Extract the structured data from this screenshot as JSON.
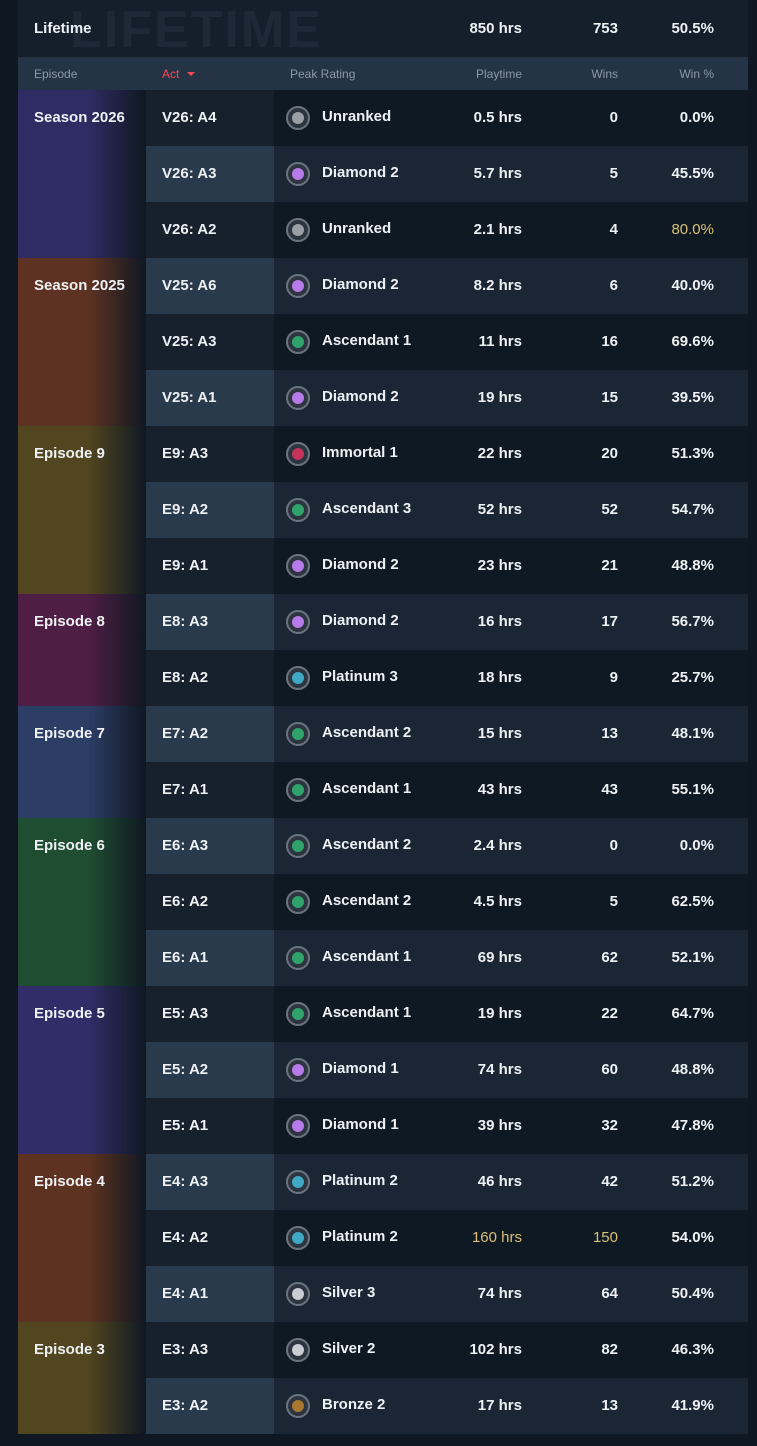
{
  "lifetime": {
    "watermark": "LIFETIME",
    "label": "Lifetime",
    "playtime": "850 hrs",
    "wins": "753",
    "win_pct": "50.5%"
  },
  "headers": [
    "Episode",
    "Act",
    "Peak Rating",
    "Playtime",
    "Wins",
    "Win %"
  ],
  "episodes": [
    {
      "name": "Season 2026",
      "color": "#2f2b63",
      "acts": [
        {
          "act": "V26: A4",
          "rank": "Unranked",
          "tier_color": "#9aa0a6",
          "playtime": "0.5 hrs",
          "wins": "0",
          "win_pct": "0.0%"
        },
        {
          "act": "V26: A3",
          "rank": "Diamond 2",
          "tier_color": "#b77be8",
          "playtime": "5.7 hrs",
          "wins": "5",
          "win_pct": "45.5%"
        },
        {
          "act": "V26: A2",
          "rank": "Unranked",
          "tier_color": "#9aa0a6",
          "playtime": "2.1 hrs",
          "wins": "4",
          "win_pct": "80.0%",
          "highlight": [
            "win_pct"
          ]
        }
      ]
    },
    {
      "name": "Season 2025",
      "color": "#5e3222",
      "acts": [
        {
          "act": "V25: A6",
          "rank": "Diamond 2",
          "tier_color": "#b77be8",
          "playtime": "8.2 hrs",
          "wins": "6",
          "win_pct": "40.0%"
        },
        {
          "act": "V25: A3",
          "rank": "Ascendant 1",
          "tier_color": "#2fa36b",
          "playtime": "11 hrs",
          "wins": "16",
          "win_pct": "69.6%"
        },
        {
          "act": "V25: A1",
          "rank": "Diamond 2",
          "tier_color": "#b77be8",
          "playtime": "19 hrs",
          "wins": "15",
          "win_pct": "39.5%"
        }
      ]
    },
    {
      "name": "Episode 9",
      "color": "#524620",
      "acts": [
        {
          "act": "E9: A3",
          "rank": "Immortal 1",
          "tier_color": "#c4345a",
          "playtime": "22 hrs",
          "wins": "20",
          "win_pct": "51.3%"
        },
        {
          "act": "E9: A2",
          "rank": "Ascendant 3",
          "tier_color": "#2fa36b",
          "playtime": "52 hrs",
          "wins": "52",
          "win_pct": "54.7%"
        },
        {
          "act": "E9: A1",
          "rank": "Diamond 2",
          "tier_color": "#b77be8",
          "playtime": "23 hrs",
          "wins": "21",
          "win_pct": "48.8%"
        }
      ]
    },
    {
      "name": "Episode 8",
      "color": "#4e1e44",
      "acts": [
        {
          "act": "E8: A3",
          "rank": "Diamond 2",
          "tier_color": "#b77be8",
          "playtime": "16 hrs",
          "wins": "17",
          "win_pct": "56.7%"
        },
        {
          "act": "E8: A2",
          "rank": "Platinum 3",
          "tier_color": "#3fa9c4",
          "playtime": "18 hrs",
          "wins": "9",
          "win_pct": "25.7%"
        }
      ]
    },
    {
      "name": "Episode 7",
      "color": "#2c3d66",
      "acts": [
        {
          "act": "E7: A2",
          "rank": "Ascendant 2",
          "tier_color": "#2fa36b",
          "playtime": "15 hrs",
          "wins": "13",
          "win_pct": "48.1%"
        },
        {
          "act": "E7: A1",
          "rank": "Ascendant 1",
          "tier_color": "#2fa36b",
          "playtime": "43 hrs",
          "wins": "43",
          "win_pct": "55.1%"
        }
      ]
    },
    {
      "name": "Episode 6",
      "color": "#1f4d31",
      "acts": [
        {
          "act": "E6: A3",
          "rank": "Ascendant 2",
          "tier_color": "#2fa36b",
          "playtime": "2.4 hrs",
          "wins": "0",
          "win_pct": "0.0%"
        },
        {
          "act": "E6: A2",
          "rank": "Ascendant 2",
          "tier_color": "#2fa36b",
          "playtime": "4.5 hrs",
          "wins": "5",
          "win_pct": "62.5%"
        },
        {
          "act": "E6: A1",
          "rank": "Ascendant 1",
          "tier_color": "#2fa36b",
          "playtime": "69 hrs",
          "wins": "62",
          "win_pct": "52.1%"
        }
      ]
    },
    {
      "name": "Episode 5",
      "color": "#302d68",
      "acts": [
        {
          "act": "E5: A3",
          "rank": "Ascendant 1",
          "tier_color": "#2fa36b",
          "playtime": "19 hrs",
          "wins": "22",
          "win_pct": "64.7%"
        },
        {
          "act": "E5: A2",
          "rank": "Diamond 1",
          "tier_color": "#b77be8",
          "playtime": "74 hrs",
          "wins": "60",
          "win_pct": "48.8%"
        },
        {
          "act": "E5: A1",
          "rank": "Diamond 1",
          "tier_color": "#b77be8",
          "playtime": "39 hrs",
          "wins": "32",
          "win_pct": "47.8%"
        }
      ]
    },
    {
      "name": "Episode 4",
      "color": "#5e3220",
      "acts": [
        {
          "act": "E4: A3",
          "rank": "Platinum 2",
          "tier_color": "#3fa9c4",
          "playtime": "46 hrs",
          "wins": "42",
          "win_pct": "51.2%"
        },
        {
          "act": "E4: A2",
          "rank": "Platinum 2",
          "tier_color": "#3fa9c4",
          "playtime": "160 hrs",
          "wins": "150",
          "win_pct": "54.0%",
          "highlight": [
            "playtime",
            "wins"
          ]
        },
        {
          "act": "E4: A1",
          "rank": "Silver 3",
          "tier_color": "#c9cdd1",
          "playtime": "74 hrs",
          "wins": "64",
          "win_pct": "50.4%"
        }
      ]
    },
    {
      "name": "Episode 3",
      "color": "#524620",
      "acts": [
        {
          "act": "E3: A3",
          "rank": "Silver 2",
          "tier_color": "#c9cdd1",
          "playtime": "102 hrs",
          "wins": "82",
          "win_pct": "46.3%"
        },
        {
          "act": "E3: A2",
          "rank": "Bronze 2",
          "tier_color": "#a8782f",
          "playtime": "17 hrs",
          "wins": "13",
          "win_pct": "41.9%"
        }
      ]
    }
  ]
}
